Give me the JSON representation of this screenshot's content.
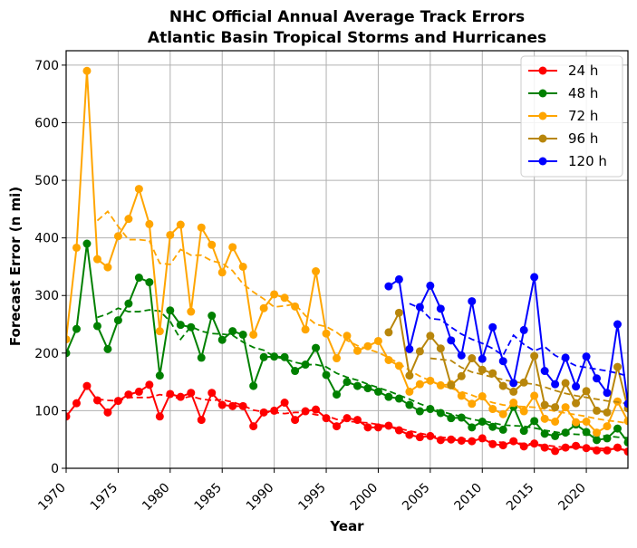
{
  "chart_data": {
    "type": "line",
    "title": "NHC Official Annual Average Track Errors",
    "subtitle": "Atlantic Basin Tropical Storms and Hurricanes",
    "xlabel": "Year",
    "ylabel": "Forecast Error (n mi)",
    "xlim": [
      1970,
      2024
    ],
    "ylim": [
      0,
      725
    ],
    "x_ticks": [
      1970,
      1975,
      1980,
      1985,
      1990,
      1995,
      2000,
      2005,
      2010,
      2015,
      2020
    ],
    "y_ticks": [
      0,
      100,
      200,
      300,
      400,
      500,
      600,
      700
    ],
    "grid": true,
    "legend_position": "top-right",
    "series": [
      {
        "name": "24 h",
        "color": "#ff0000",
        "x": [
          1970,
          1971,
          1972,
          1973,
          1974,
          1975,
          1976,
          1977,
          1978,
          1979,
          1980,
          1981,
          1982,
          1983,
          1984,
          1985,
          1986,
          1987,
          1988,
          1989,
          1990,
          1991,
          1992,
          1993,
          1994,
          1995,
          1996,
          1997,
          1998,
          1999,
          2000,
          2001,
          2002,
          2003,
          2004,
          2005,
          2006,
          2007,
          2008,
          2009,
          2010,
          2011,
          2012,
          2013,
          2014,
          2015,
          2016,
          2017,
          2018,
          2019,
          2020,
          2021,
          2022,
          2023,
          2024
        ],
        "values": [
          90,
          113,
          143,
          118,
          97,
          117,
          128,
          133,
          145,
          90,
          129,
          124,
          131,
          84,
          131,
          110,
          108,
          108,
          73,
          97,
          100,
          114,
          84,
          99,
          102,
          87,
          73,
          87,
          84,
          71,
          71,
          74,
          66,
          58,
          54,
          56,
          49,
          50,
          48,
          47,
          52,
          42,
          40,
          47,
          38,
          43,
          36,
          30,
          36,
          39,
          35,
          31,
          31,
          36,
          29
        ],
        "trend": [
          null,
          null,
          null,
          120,
          118,
          117,
          123,
          123,
          123,
          128,
          125,
          121,
          125,
          120,
          118,
          119,
          115,
          109,
          101,
          98,
          97,
          95,
          97,
          97,
          93,
          91,
          85,
          82,
          80,
          79,
          76,
          73,
          69,
          65,
          61,
          57,
          54,
          52,
          51,
          50,
          49,
          46,
          45,
          44,
          43,
          42,
          40,
          38,
          36,
          36,
          36,
          35,
          34,
          33,
          32
        ]
      },
      {
        "name": "48 h",
        "color": "#008000",
        "x": [
          1970,
          1971,
          1972,
          1973,
          1974,
          1975,
          1976,
          1977,
          1978,
          1979,
          1980,
          1981,
          1982,
          1983,
          1984,
          1985,
          1986,
          1987,
          1988,
          1989,
          1990,
          1991,
          1992,
          1993,
          1994,
          1995,
          1996,
          1997,
          1998,
          1999,
          2000,
          2001,
          2002,
          2003,
          2004,
          2005,
          2006,
          2007,
          2008,
          2009,
          2010,
          2011,
          2012,
          2013,
          2014,
          2015,
          2016,
          2017,
          2018,
          2019,
          2020,
          2021,
          2022,
          2023,
          2024
        ],
        "values": [
          200,
          242,
          390,
          247,
          207,
          257,
          286,
          331,
          323,
          161,
          274,
          249,
          245,
          192,
          265,
          223,
          238,
          232,
          143,
          193,
          194,
          193,
          169,
          180,
          209,
          162,
          128,
          150,
          143,
          139,
          133,
          124,
          121,
          110,
          99,
          103,
          96,
          87,
          88,
          71,
          81,
          72,
          67,
          107,
          65,
          82,
          60,
          56,
          62,
          76,
          63,
          49,
          52,
          69,
          45
        ],
        "trend": [
          null,
          null,
          null,
          262,
          268,
          278,
          272,
          272,
          275,
          273,
          255,
          224,
          246,
          238,
          234,
          233,
          231,
          219,
          210,
          205,
          194,
          190,
          184,
          180,
          180,
          176,
          165,
          158,
          153,
          146,
          140,
          134,
          127,
          120,
          112,
          105,
          99,
          94,
          90,
          85,
          82,
          79,
          75,
          74,
          73,
          70,
          66,
          63,
          60,
          59,
          58,
          57,
          56,
          54,
          53
        ]
      },
      {
        "name": "72 h",
        "color": "#ffa500",
        "x": [
          1970,
          1971,
          1972,
          1973,
          1974,
          1975,
          1976,
          1977,
          1978,
          1979,
          1980,
          1981,
          1982,
          1983,
          1984,
          1985,
          1986,
          1987,
          1988,
          1989,
          1990,
          1991,
          1992,
          1993,
          1994,
          1995,
          1996,
          1997,
          1998,
          1999,
          2000,
          2001,
          2002,
          2003,
          2004,
          2005,
          2006,
          2007,
          2008,
          2009,
          2010,
          2011,
          2012,
          2013,
          2014,
          2015,
          2016,
          2017,
          2018,
          2019,
          2020,
          2021,
          2022,
          2023,
          2024
        ],
        "values": [
          224,
          383,
          690,
          363,
          349,
          403,
          433,
          485,
          424,
          238,
          405,
          423,
          272,
          418,
          388,
          340,
          384,
          350,
          232,
          278,
          302,
          296,
          281,
          241,
          342,
          234,
          191,
          230,
          204,
          212,
          221,
          188,
          178,
          133,
          146,
          152,
          144,
          146,
          126,
          112,
          125,
          103,
          94,
          114,
          99,
          126,
          86,
          81,
          106,
          80,
          81,
          62,
          73,
          116,
          82
        ],
        "trend": [
          null,
          null,
          null,
          430,
          446,
          420,
          397,
          397,
          395,
          356,
          354,
          380,
          370,
          370,
          360,
          356,
          343,
          320,
          306,
          294,
          280,
          282,
          285,
          265,
          250,
          246,
          236,
          222,
          213,
          207,
          201,
          192,
          182,
          170,
          160,
          152,
          144,
          139,
          133,
          127,
          120,
          114,
          110,
          108,
          107,
          106,
          103,
          99,
          96,
          93,
          90,
          86,
          83,
          81,
          78
        ]
      },
      {
        "name": "96 h",
        "color": "#b8860b",
        "x": [
          2001,
          2002,
          2003,
          2004,
          2005,
          2006,
          2007,
          2008,
          2009,
          2010,
          2011,
          2012,
          2013,
          2014,
          2015,
          2016,
          2017,
          2018,
          2019,
          2020,
          2021,
          2022,
          2023,
          2024
        ],
        "values": [
          236,
          270,
          161,
          203,
          230,
          208,
          144,
          160,
          191,
          171,
          165,
          143,
          133,
          149,
          195,
          110,
          106,
          148,
          113,
          134,
          100,
          97,
          176,
          104
        ],
        "trend": [
          null,
          null,
          null,
          null,
          191,
          189,
          187,
          175,
          167,
          163,
          158,
          154,
          150,
          148,
          146,
          141,
          135,
          130,
          126,
          123,
          120,
          117,
          115,
          112
        ]
      },
      {
        "name": "120 h",
        "color": "#0000ff",
        "x": [
          2001,
          2002,
          2003,
          2004,
          2005,
          2006,
          2007,
          2008,
          2009,
          2010,
          2011,
          2012,
          2013,
          2014,
          2015,
          2016,
          2017,
          2018,
          2019,
          2020,
          2021,
          2022,
          2023,
          2024
        ],
        "values": [
          316,
          328,
          207,
          280,
          317,
          277,
          222,
          196,
          290,
          190,
          245,
          186,
          148,
          240,
          332,
          169,
          146,
          192,
          142,
          194,
          156,
          131,
          250,
          112
        ],
        "trend": [
          null,
          null,
          286,
          278,
          260,
          258,
          245,
          233,
          224,
          217,
          208,
          196,
          231,
          215,
          204,
          211,
          196,
          187,
          178,
          175,
          172,
          169,
          165,
          160
        ]
      }
    ]
  }
}
